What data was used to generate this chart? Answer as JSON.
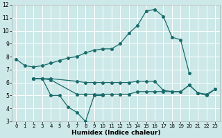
{
  "xlabel": "Humidex (Indice chaleur)",
  "bg_color": "#cce8e8",
  "grid_color": "#ffffff",
  "line_color": "#1a6b6b",
  "xlim": [
    -0.5,
    23.5
  ],
  "ylim": [
    3,
    12
  ],
  "yticks": [
    3,
    4,
    5,
    6,
    7,
    8,
    9,
    10,
    11,
    12
  ],
  "xticks": [
    0,
    1,
    2,
    3,
    4,
    5,
    6,
    7,
    8,
    9,
    10,
    11,
    12,
    13,
    14,
    15,
    16,
    17,
    18,
    19,
    20,
    21,
    22,
    23
  ],
  "line1": {
    "x": [
      0,
      1,
      2,
      3,
      4,
      5,
      6,
      7,
      8,
      9,
      10,
      11,
      12,
      13,
      14,
      15,
      16,
      17,
      18,
      19,
      20
    ],
    "y": [
      7.8,
      7.3,
      7.2,
      7.3,
      7.5,
      7.7,
      7.9,
      8.0,
      8.3,
      8.5,
      8.6,
      8.6,
      9.0,
      9.8,
      10.4,
      11.5,
      11.65,
      11.1,
      9.5,
      9.3,
      6.7
    ]
  },
  "line2": {
    "x": [
      2,
      3,
      4,
      5,
      6,
      7,
      8,
      9,
      10
    ],
    "y": [
      6.3,
      6.3,
      5.0,
      5.0,
      4.1,
      3.7,
      3.0,
      5.0,
      5.0
    ]
  },
  "line3": {
    "x": [
      2,
      3,
      4,
      7,
      8,
      9,
      10,
      11,
      12,
      13,
      14,
      15,
      16,
      17,
      18,
      19,
      20,
      21,
      22,
      23
    ],
    "y": [
      6.3,
      6.3,
      6.3,
      6.1,
      6.0,
      6.0,
      6.0,
      6.0,
      6.0,
      6.0,
      6.1,
      6.1,
      6.1,
      5.4,
      5.3,
      5.3,
      5.8,
      5.2,
      5.1,
      5.5
    ]
  },
  "line4": {
    "x": [
      2,
      3,
      4,
      7,
      8,
      9,
      10,
      11,
      12,
      13,
      14,
      15,
      16,
      17,
      18,
      19,
      20,
      21,
      22,
      23
    ],
    "y": [
      6.3,
      6.3,
      6.2,
      5.1,
      5.1,
      5.1,
      5.1,
      5.1,
      5.1,
      5.1,
      5.3,
      5.3,
      5.3,
      5.3,
      5.3,
      5.3,
      5.8,
      5.2,
      5.0,
      5.5
    ]
  }
}
